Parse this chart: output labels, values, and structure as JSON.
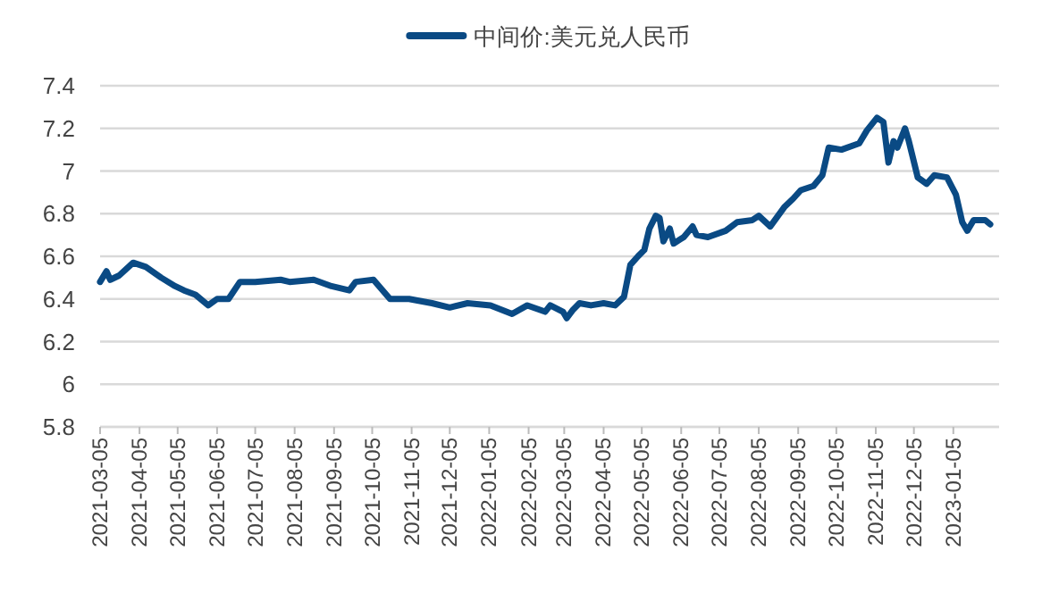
{
  "chart_data": {
    "type": "line",
    "legend": "top",
    "grid": "y",
    "line_style": "solid",
    "xlim": [
      "2021-03-05",
      "2023-02-10"
    ],
    "ylim": [
      5.8,
      7.4
    ],
    "yticks": [
      {
        "value": 5.8,
        "label": "5.8"
      },
      {
        "value": 6,
        "label": "6"
      },
      {
        "value": 6.2,
        "label": "6.2"
      },
      {
        "value": 6.4,
        "label": "6.4"
      },
      {
        "value": 6.6,
        "label": "6.6"
      },
      {
        "value": 6.8,
        "label": "6.8"
      },
      {
        "value": 7,
        "label": "7"
      },
      {
        "value": 7.2,
        "label": "7.2"
      },
      {
        "value": 7.4,
        "label": "7.4"
      }
    ],
    "xticks": [
      {
        "value": "2021-03-05",
        "label": "2021-03-05"
      },
      {
        "value": "2021-04-05",
        "label": "2021-04-05"
      },
      {
        "value": "2021-05-05",
        "label": "2021-05-05"
      },
      {
        "value": "2021-06-05",
        "label": "2021-06-05"
      },
      {
        "value": "2021-07-05",
        "label": "2021-07-05"
      },
      {
        "value": "2021-08-05",
        "label": "2021-08-05"
      },
      {
        "value": "2021-09-05",
        "label": "2021-09-05"
      },
      {
        "value": "2021-10-05",
        "label": "2021-10-05"
      },
      {
        "value": "2021-11-05",
        "label": "2021-11-05"
      },
      {
        "value": "2021-12-05",
        "label": "2021-12-05"
      },
      {
        "value": "2022-01-05",
        "label": "2022-01-05"
      },
      {
        "value": "2022-02-05",
        "label": "2022-02-05"
      },
      {
        "value": "2022-03-05",
        "label": "2022-03-05"
      },
      {
        "value": "2022-04-05",
        "label": "2022-04-05"
      },
      {
        "value": "2022-05-05",
        "label": "2022-05-05"
      },
      {
        "value": "2022-06-05",
        "label": "2022-06-05"
      },
      {
        "value": "2022-07-05",
        "label": "2022-07-05"
      },
      {
        "value": "2022-08-05",
        "label": "2022-08-05"
      },
      {
        "value": "2022-09-05",
        "label": "2022-09-05"
      },
      {
        "value": "2022-10-05",
        "label": "2022-10-05"
      },
      {
        "value": "2022-11-05",
        "label": "2022-11-05"
      },
      {
        "value": "2022-12-05",
        "label": "2022-12-05"
      },
      {
        "value": "2023-01-05",
        "label": "2023-01-05"
      }
    ],
    "series": [
      {
        "name": "中间价:美元兑人民币",
        "color": "#0a4a84",
        "x": [
          "2021-03-05",
          "2021-03-10",
          "2021-03-13",
          "2021-03-20",
          "2021-03-31",
          "2021-04-10",
          "2021-04-22",
          "2021-05-03",
          "2021-05-10",
          "2021-05-19",
          "2021-05-29",
          "2021-06-05",
          "2021-06-14",
          "2021-06-23",
          "2021-07-05",
          "2021-07-25",
          "2021-08-01",
          "2021-08-20",
          "2021-09-03",
          "2021-09-17",
          "2021-09-22",
          "2021-10-06",
          "2021-10-19",
          "2021-11-03",
          "2021-11-21",
          "2021-12-05",
          "2021-12-19",
          "2022-01-06",
          "2022-01-23",
          "2022-02-04",
          "2022-02-18",
          "2022-02-22",
          "2022-03-04",
          "2022-03-07",
          "2022-03-12",
          "2022-03-17",
          "2022-03-26",
          "2022-04-05",
          "2022-04-14",
          "2022-04-21",
          "2022-04-26",
          "2022-05-02",
          "2022-05-07",
          "2022-05-11",
          "2022-05-16",
          "2022-05-19",
          "2022-05-22",
          "2022-05-27",
          "2022-05-30",
          "2022-06-07",
          "2022-06-14",
          "2022-06-17",
          "2022-06-26",
          "2022-07-10",
          "2022-07-19",
          "2022-07-31",
          "2022-08-05",
          "2022-08-14",
          "2022-08-25",
          "2022-09-01",
          "2022-09-07",
          "2022-09-17",
          "2022-09-24",
          "2022-09-29",
          "2022-10-09",
          "2022-10-23",
          "2022-10-29",
          "2022-11-06",
          "2022-11-11",
          "2022-11-15",
          "2022-11-19",
          "2022-11-22",
          "2022-11-28",
          "2022-12-01",
          "2022-12-08",
          "2022-12-15",
          "2022-12-21",
          "2022-12-31",
          "2023-01-07",
          "2023-01-12",
          "2023-01-16",
          "2023-01-21",
          "2023-01-30",
          "2023-02-03"
        ],
        "values": [
          6.48,
          6.53,
          6.49,
          6.51,
          6.57,
          6.55,
          6.5,
          6.46,
          6.44,
          6.42,
          6.37,
          6.4,
          6.4,
          6.48,
          6.48,
          6.49,
          6.48,
          6.49,
          6.46,
          6.44,
          6.48,
          6.49,
          6.4,
          6.4,
          6.38,
          6.36,
          6.38,
          6.37,
          6.33,
          6.37,
          6.34,
          6.37,
          6.34,
          6.31,
          6.35,
          6.38,
          6.37,
          6.38,
          6.37,
          6.41,
          6.56,
          6.6,
          6.63,
          6.73,
          6.79,
          6.78,
          6.67,
          6.73,
          6.66,
          6.69,
          6.74,
          6.7,
          6.69,
          6.72,
          6.76,
          6.77,
          6.79,
          6.74,
          6.83,
          6.87,
          6.91,
          6.93,
          6.98,
          7.11,
          7.1,
          7.13,
          7.19,
          7.25,
          7.23,
          7.04,
          7.14,
          7.11,
          7.2,
          7.14,
          6.97,
          6.94,
          6.98,
          6.97,
          6.89,
          6.76,
          6.72,
          6.77,
          6.77,
          6.75
        ]
      }
    ]
  }
}
